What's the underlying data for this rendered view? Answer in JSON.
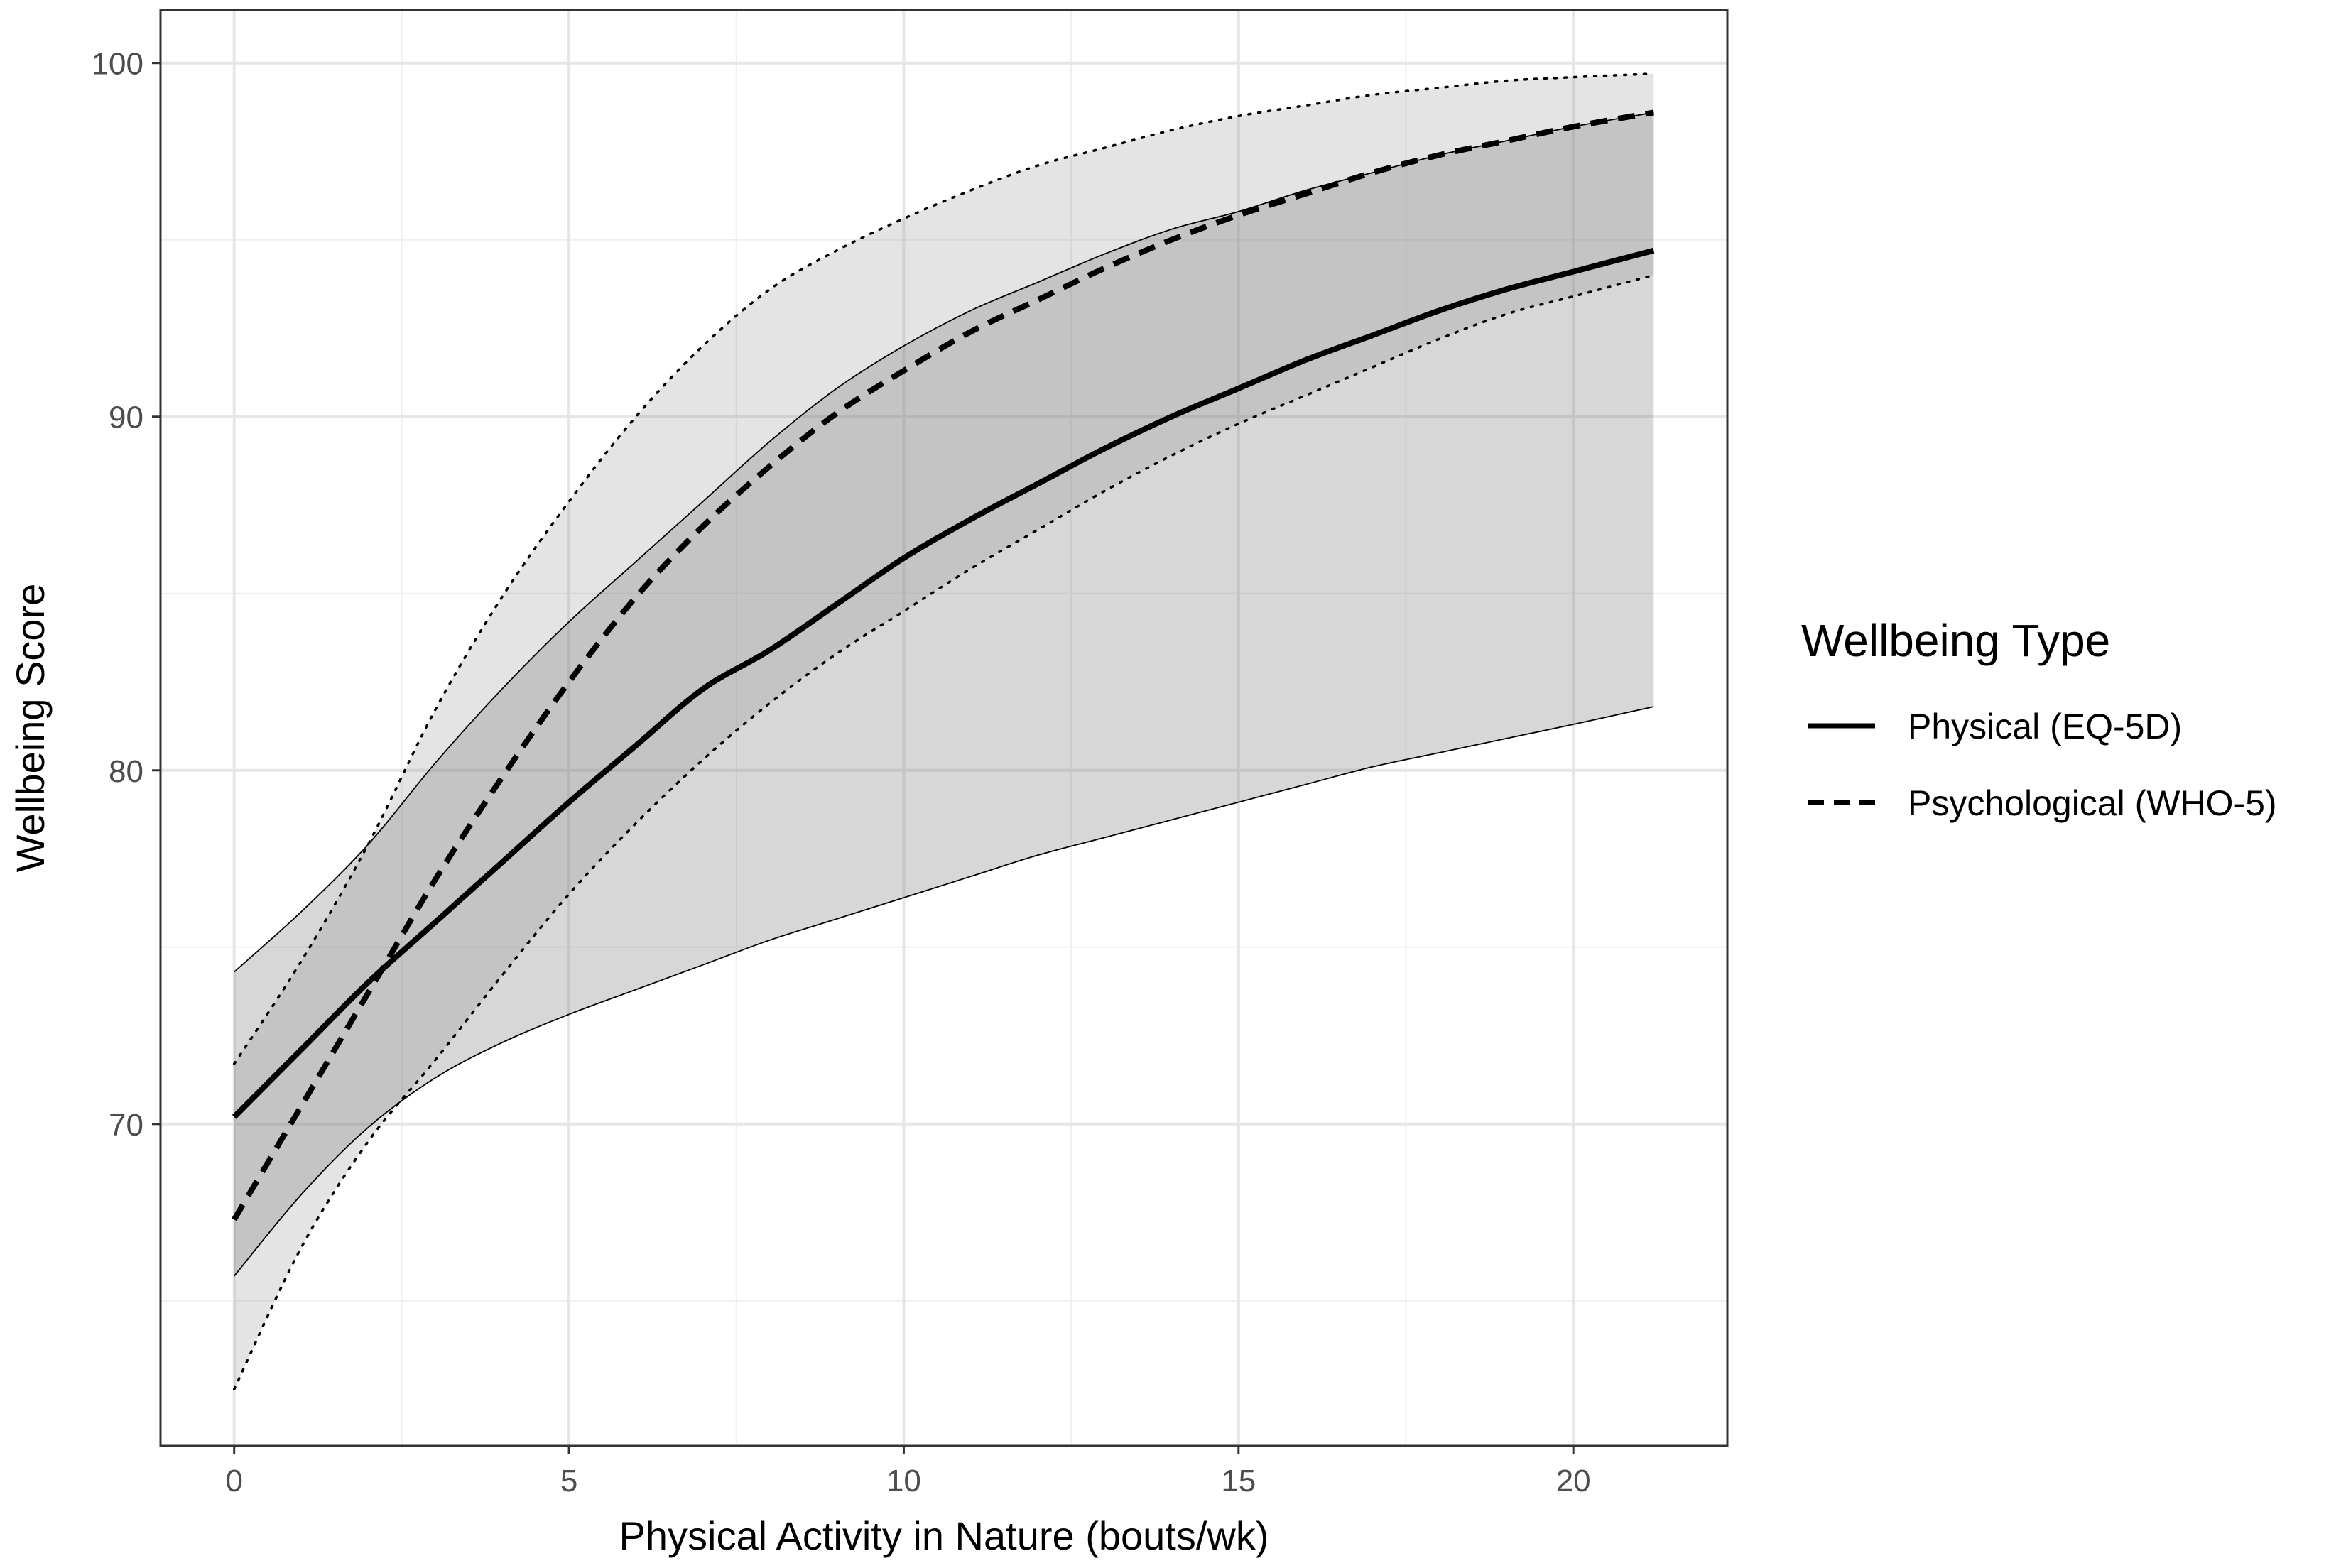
{
  "chart_data": {
    "type": "line",
    "title": "",
    "xlabel": "Physical Activity in Nature (bouts/wk)",
    "ylabel": "Wellbeing Score",
    "xlim": [
      -1.1,
      22.3
    ],
    "ylim": [
      60.9,
      101.5
    ],
    "x_ticks": [
      0,
      5,
      10,
      15,
      20
    ],
    "y_ticks": [
      70,
      80,
      90,
      100
    ],
    "grid": true,
    "legend": {
      "title": "Wellbeing Type",
      "position": "right",
      "entries": [
        {
          "label": "Physical (EQ-5D)",
          "linetype": "solid"
        },
        {
          "label": "Psychological (WHO-5)",
          "linetype": "dashed"
        }
      ]
    },
    "x": [
      0,
      1,
      2,
      3,
      4,
      5,
      6,
      7,
      8,
      9,
      10,
      11,
      12,
      13,
      14,
      15,
      16,
      17,
      18,
      19,
      20,
      21.2
    ],
    "series": [
      {
        "name": "Physical (EQ-5D)",
        "linetype": "solid",
        "values": [
          70.2,
          72.1,
          74.0,
          75.7,
          77.4,
          79.1,
          80.7,
          82.3,
          83.4,
          84.7,
          86.0,
          87.1,
          88.1,
          89.1,
          90.0,
          90.8,
          91.6,
          92.3,
          93.0,
          93.6,
          94.1,
          94.7
        ],
        "ci_lower": [
          65.7,
          68.0,
          69.9,
          71.3,
          72.3,
          73.1,
          73.8,
          74.5,
          75.2,
          75.8,
          76.4,
          77.0,
          77.6,
          78.1,
          78.6,
          79.1,
          79.6,
          80.1,
          80.5,
          80.9,
          81.3,
          81.8
        ],
        "ci_upper": [
          74.3,
          76.0,
          77.9,
          80.2,
          82.3,
          84.2,
          85.9,
          87.6,
          89.3,
          90.8,
          92.0,
          93.0,
          93.8,
          94.6,
          95.3,
          95.8,
          96.4,
          96.9,
          97.4,
          97.8,
          98.2,
          98.6
        ]
      },
      {
        "name": "Psychological (WHO-5)",
        "linetype": "dashed",
        "values": [
          67.3,
          70.5,
          73.7,
          76.9,
          79.8,
          82.5,
          84.9,
          86.9,
          88.6,
          90.1,
          91.3,
          92.4,
          93.3,
          94.2,
          95.0,
          95.7,
          96.3,
          96.9,
          97.4,
          97.8,
          98.2,
          98.6
        ],
        "ci_lower": [
          62.5,
          66.5,
          69.5,
          71.8,
          74.2,
          76.5,
          78.5,
          80.3,
          81.9,
          83.3,
          84.5,
          85.7,
          86.8,
          87.9,
          88.9,
          89.8,
          90.6,
          91.4,
          92.2,
          92.9,
          93.4,
          94.0
        ],
        "ci_upper": [
          71.7,
          74.6,
          77.9,
          81.7,
          84.9,
          87.6,
          90.0,
          92.0,
          93.6,
          94.7,
          95.6,
          96.4,
          97.1,
          97.6,
          98.1,
          98.5,
          98.8,
          99.1,
          99.3,
          99.5,
          99.6,
          99.7
        ]
      }
    ]
  }
}
